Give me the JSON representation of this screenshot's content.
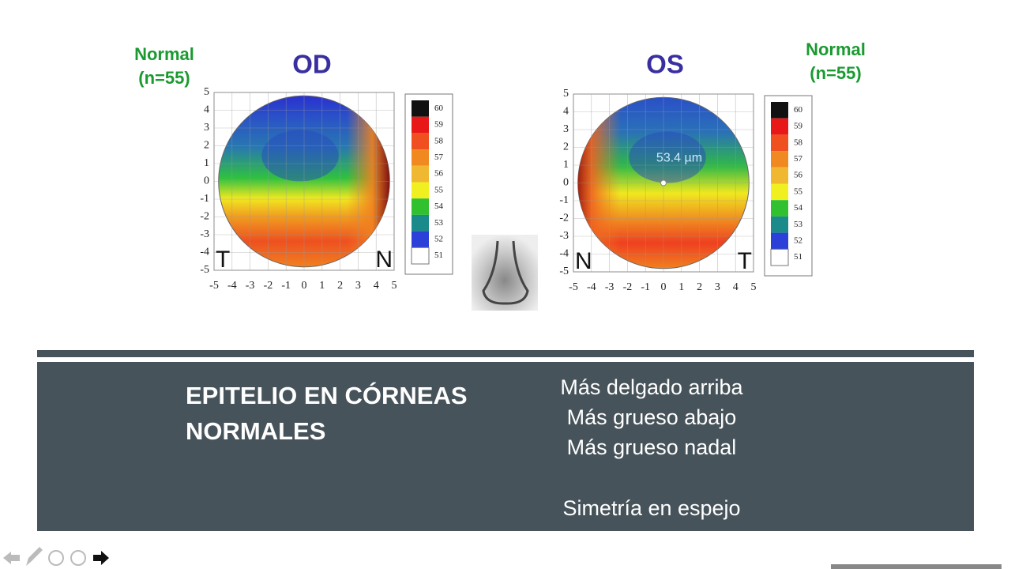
{
  "slide": {
    "maps": [
      {
        "group": "Normal",
        "n": "(n=55)",
        "title": "OD",
        "xticks": [
          -5,
          -4,
          -3,
          -2,
          -1,
          0,
          1,
          2,
          3,
          4,
          5
        ],
        "yticks": [
          5,
          4,
          3,
          2,
          1,
          0,
          -1,
          -2,
          -3,
          -4,
          -5
        ],
        "scale": [
          60,
          59,
          58,
          57,
          56,
          55,
          54,
          53,
          52,
          51
        ],
        "scale_colors": [
          "#111111",
          "#e81818",
          "#f05020",
          "#f08a20",
          "#f0b830",
          "#f0f020",
          "#30c030",
          "#1a8a8a",
          "#2a40d8",
          "#ffffff"
        ],
        "corners": [
          "T",
          "N"
        ]
      },
      {
        "group": "Normal",
        "n": "(n=55)",
        "title": "OS",
        "xticks": [
          -5,
          -4,
          -3,
          -2,
          -1,
          0,
          1,
          2,
          3,
          4,
          5
        ],
        "yticks": [
          5,
          4,
          3,
          2,
          1,
          0,
          -1,
          -2,
          -3,
          -4,
          -5
        ],
        "scale": [
          60,
          59,
          58,
          57,
          56,
          55,
          54,
          53,
          52,
          51
        ],
        "scale_colors": [
          "#111111",
          "#e81818",
          "#f05020",
          "#f08a20",
          "#f0b830",
          "#f0f020",
          "#30c030",
          "#1a8a8a",
          "#2a40d8",
          "#ffffff"
        ],
        "corners": [
          "N",
          "T"
        ],
        "annotation": "53.4 µm"
      }
    ],
    "panel": {
      "title": [
        "EPITELIO EN CÓRNEAS",
        "NORMALES"
      ],
      "lines": [
        "Más delgado arriba",
        "Más grueso abajo",
        "Más grueso nadal",
        "Simetría en espejo"
      ]
    }
  }
}
